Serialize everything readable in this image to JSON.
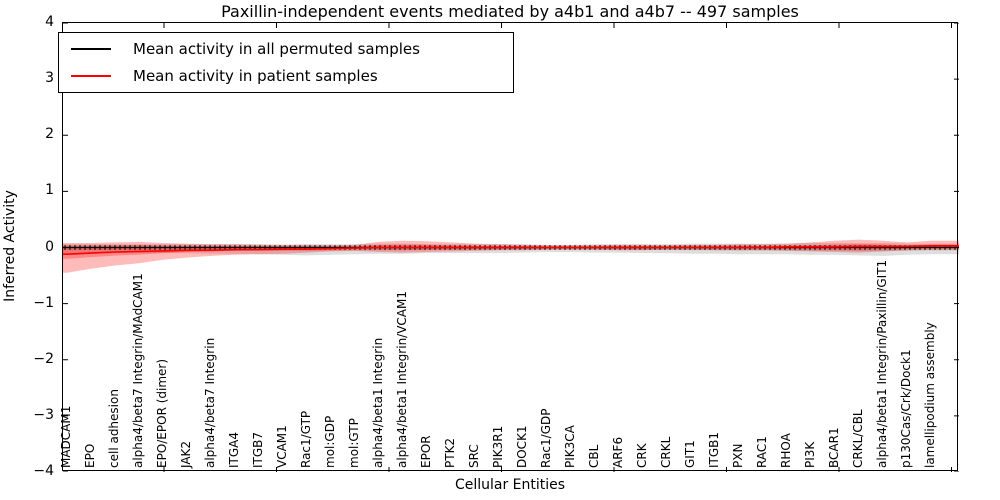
{
  "figure": {
    "title": "Paxillin-independent events mediated by a4b1 and a4b7 -- 497 samples",
    "xlabel": "Cellular Entities",
    "ylabel": "Inferred Activity"
  },
  "legend": {
    "items": [
      {
        "label": "Mean activity in all permuted samples",
        "color": "#000000"
      },
      {
        "label": "Mean activity in patient samples",
        "color": "#ff0000"
      }
    ]
  },
  "axes": {
    "ytick_labels": [
      "4",
      "3",
      "2",
      "1",
      "0",
      "−1",
      "−2",
      "−3",
      "−4"
    ]
  },
  "chart_data": {
    "type": "line",
    "title": "Paxillin-independent events mediated by a4b1 and a4b7 -- 497 samples",
    "xlabel": "Cellular Entities",
    "ylabel": "Inferred Activity",
    "ylim": [
      -4,
      4
    ],
    "yticks": [
      4,
      3,
      2,
      1,
      0,
      -1,
      -2,
      -3,
      -4
    ],
    "grid": false,
    "legend_position": "upper left",
    "categories": [
      "MADCAM1",
      "EPO",
      "cell adhesion",
      "alpha4/beta7 Integrin/MAdCAM1",
      "EPO/EPOR (dimer)",
      "JAK2",
      "alpha4/beta7 Integrin",
      "ITGA4",
      "ITGB7",
      "VCAM1",
      "Rac1/GTP",
      "mol:GDP",
      "mol:GTP",
      "alpha4/beta1 Integrin",
      "alpha4/beta1 Integrin/VCAM1",
      "EPOR",
      "PTK2",
      "SRC",
      "PIK3R1",
      "DOCK1",
      "Rac1/GDP",
      "PIK3CA",
      "CBL",
      "ARF6",
      "CRK",
      "CRKL",
      "GIT1",
      "ITGB1",
      "PXN",
      "RAC1",
      "RHOA",
      "PI3K",
      "BCAR1",
      "CRKL/CBL",
      "alpha4/beta1 Integrin/Paxillin/GIT1",
      "p130Cas/Crk/Dock1",
      "lamellipodium assembly"
    ],
    "series": [
      {
        "name": "Mean activity in all permuted samples",
        "color": "#000000",
        "values": [
          0,
          0,
          0,
          0,
          0,
          0,
          0,
          0,
          0,
          0,
          0,
          0,
          0,
          0,
          0,
          0,
          0,
          0,
          0,
          0,
          0,
          0,
          0,
          0,
          0,
          0,
          0,
          0,
          0,
          0,
          0,
          0,
          0,
          0,
          0,
          0,
          0
        ]
      },
      {
        "name": "Mean activity in patient samples",
        "color": "#ff0000",
        "values": [
          -0.12,
          -0.1,
          -0.08,
          -0.07,
          -0.06,
          -0.05,
          -0.05,
          -0.04,
          -0.04,
          -0.03,
          -0.03,
          -0.02,
          -0.01,
          0,
          0,
          0,
          0,
          0,
          0,
          0,
          0,
          0,
          0,
          0,
          0,
          0,
          0,
          0,
          0,
          0,
          0.01,
          0.01,
          0.01,
          0.02,
          0.02,
          0.02,
          0.03
        ]
      }
    ],
    "bands": [
      {
        "name": "permuted samples range",
        "fill": "rgba(0,0,0,0.13)",
        "lo": [
          -0.1,
          -0.1,
          -0.1,
          -0.1,
          -0.1,
          -0.1,
          -0.11,
          -0.11,
          -0.12,
          -0.13,
          -0.14,
          -0.13,
          -0.12,
          -0.11,
          -0.11,
          -0.1,
          -0.1,
          -0.1,
          -0.1,
          -0.09,
          -0.08,
          -0.08,
          -0.09,
          -0.09,
          -0.1,
          -0.1,
          -0.11,
          -0.11,
          -0.12,
          -0.12,
          -0.12,
          -0.13,
          -0.13,
          -0.14,
          -0.15,
          -0.13,
          -0.12
        ],
        "hi": [
          0.06,
          0.06,
          0.06,
          0.06,
          0.06,
          0.06,
          0.06,
          0.06,
          0.06,
          0.05,
          0.06,
          0.06,
          0.06,
          0.07,
          0.07,
          0.06,
          0.06,
          0.06,
          0.06,
          0.06,
          0.05,
          0.05,
          0.06,
          0.06,
          0.06,
          0.06,
          0.07,
          0.07,
          0.07,
          0.07,
          0.07,
          0.08,
          0.08,
          0.08,
          0.08,
          0.07,
          0.07
        ]
      },
      {
        "name": "patient samples range",
        "fill": "rgba(255,0,0,0.27)",
        "lo": [
          -0.45,
          -0.38,
          -0.32,
          -0.28,
          -0.22,
          -0.18,
          -0.15,
          -0.13,
          -0.12,
          -0.11,
          -0.09,
          -0.07,
          -0.06,
          -0.08,
          -0.09,
          -0.08,
          -0.07,
          -0.06,
          -0.05,
          -0.05,
          -0.04,
          -0.04,
          -0.04,
          -0.05,
          -0.05,
          -0.04,
          -0.04,
          -0.05,
          -0.05,
          -0.05,
          -0.06,
          -0.07,
          -0.08,
          -0.09,
          -0.07,
          -0.05,
          -0.04
        ],
        "hi": [
          0.08,
          0.08,
          0.09,
          0.1,
          0.08,
          0.07,
          0.06,
          0.06,
          0.05,
          0.05,
          0.05,
          0.04,
          0.05,
          0.1,
          0.12,
          0.11,
          0.09,
          0.07,
          0.06,
          0.05,
          0.04,
          0.04,
          0.04,
          0.05,
          0.05,
          0.04,
          0.05,
          0.05,
          0.06,
          0.06,
          0.07,
          0.09,
          0.12,
          0.14,
          0.12,
          0.09,
          0.12
        ]
      }
    ]
  }
}
